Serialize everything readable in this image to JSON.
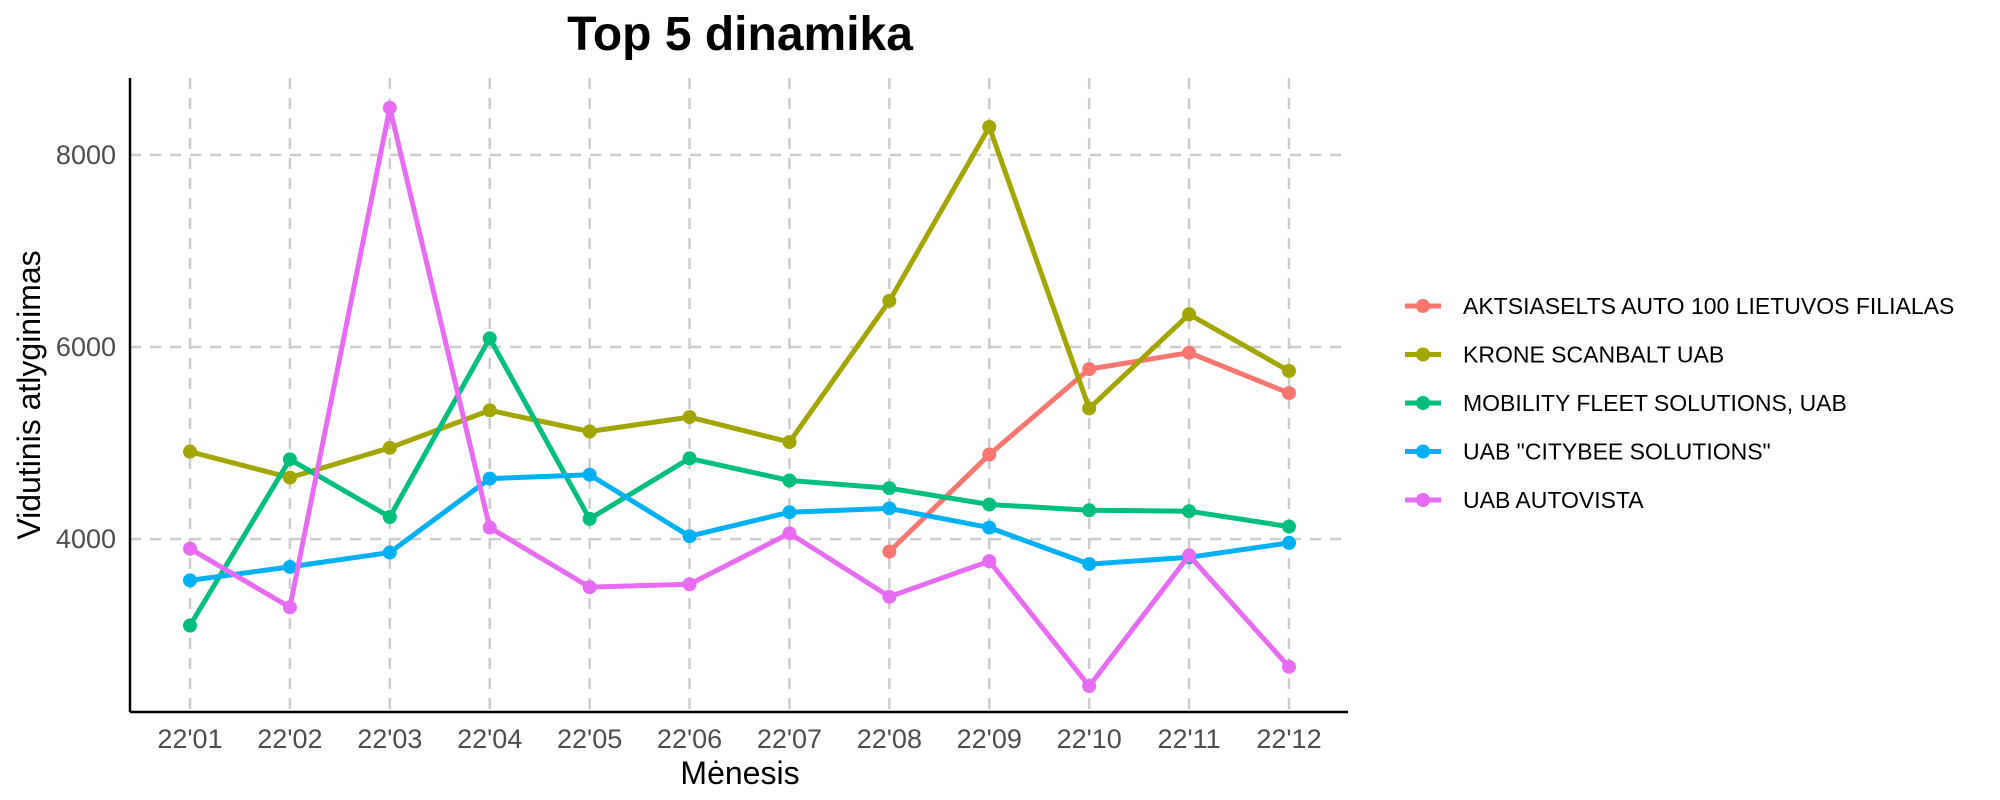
{
  "chart_data": {
    "type": "line",
    "title": "Top 5 dinamika",
    "xlabel": "Mėnesis",
    "ylabel": "Vidutinis atlyginimas",
    "categories": [
      "22'01",
      "22'02",
      "22'03",
      "22'04",
      "22'05",
      "22'06",
      "22'07",
      "22'08",
      "22'09",
      "22'10",
      "22'11",
      "22'12"
    ],
    "yticks": [
      4000,
      6000,
      8000
    ],
    "ylim": [
      2200,
      8800
    ],
    "grid": true,
    "legend_position": "right",
    "series": [
      {
        "name": "AKTSIASELTS AUTO 100 LIETUVOS FILIALAS",
        "color": "#F8766D",
        "values": [
          null,
          null,
          null,
          null,
          null,
          null,
          null,
          3870,
          4880,
          5770,
          5940,
          5520
        ]
      },
      {
        "name": "KRONE SCANBALT UAB",
        "color": "#A3A500",
        "values": [
          4910,
          4640,
          4950,
          5340,
          5120,
          5270,
          5010,
          6480,
          8290,
          5360,
          6340,
          5750
        ]
      },
      {
        "name": "MOBILITY FLEET SOLUTIONS, UAB",
        "color": "#00BF7D",
        "values": [
          3100,
          4830,
          4230,
          6090,
          4210,
          4840,
          4610,
          4530,
          4360,
          4300,
          4290,
          4130
        ]
      },
      {
        "name": "UAB \"CITYBEE SOLUTIONS\"",
        "color": "#00B0F6",
        "values": [
          3570,
          3710,
          3860,
          4630,
          4670,
          4030,
          4280,
          4320,
          4120,
          3740,
          3810,
          3960
        ]
      },
      {
        "name": "UAB AUTOVISTA",
        "color": "#E76BF3",
        "values": [
          3900,
          3290,
          8490,
          4120,
          3500,
          3530,
          4060,
          3400,
          3770,
          2470,
          3830,
          2670
        ]
      }
    ]
  }
}
